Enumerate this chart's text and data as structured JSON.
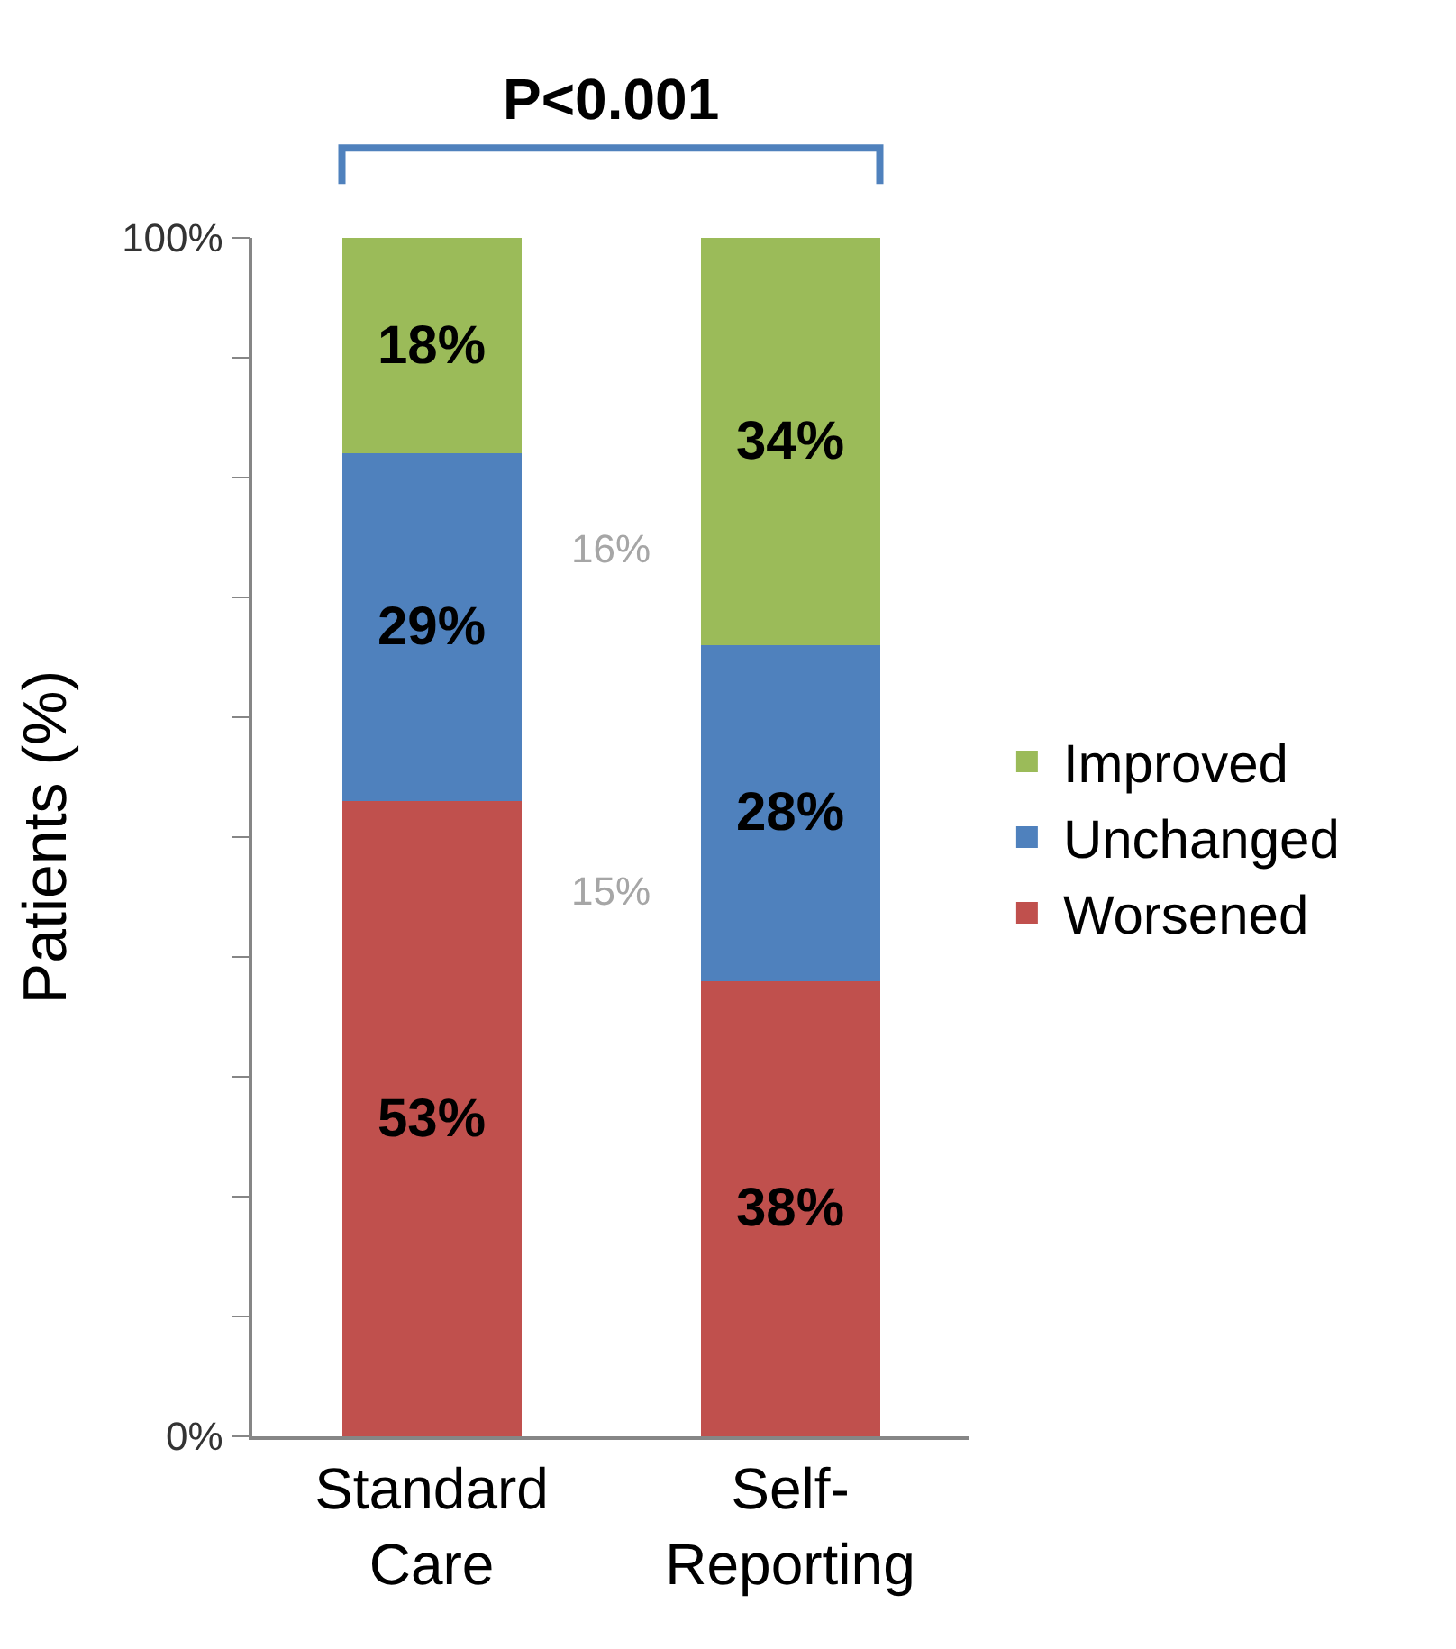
{
  "chart_data": {
    "type": "bar",
    "stacked": true,
    "ylabel": "Patients (%)",
    "categories": [
      "Standard Care",
      "Self-Reporting"
    ],
    "series": [
      {
        "name": "Worsened",
        "color": "#c0504d",
        "values": [
          53,
          38
        ],
        "value_labels": [
          "53%",
          "38%"
        ]
      },
      {
        "name": "Unchanged",
        "color": "#4f81bd",
        "values": [
          29,
          28
        ],
        "value_labels": [
          "29%",
          "28%"
        ]
      },
      {
        "name": "Improved",
        "color": "#9bbb59",
        "values": [
          18,
          34
        ],
        "value_labels": [
          "18%",
          "34%"
        ]
      }
    ],
    "ylim": [
      0,
      100
    ],
    "yticks": [
      {
        "value": 0,
        "label": "0%"
      },
      {
        "value": 10,
        "label": null
      },
      {
        "value": 20,
        "label": null
      },
      {
        "value": 30,
        "label": null
      },
      {
        "value": 40,
        "label": null
      },
      {
        "value": 50,
        "label": null
      },
      {
        "value": 60,
        "label": null
      },
      {
        "value": 70,
        "label": null
      },
      {
        "value": 80,
        "label": null
      },
      {
        "value": 90,
        "label": null
      },
      {
        "value": 100,
        "label": "100%"
      }
    ],
    "annotations": [
      "P<0.001",
      "16%",
      "15%"
    ],
    "legend": "right"
  }
}
